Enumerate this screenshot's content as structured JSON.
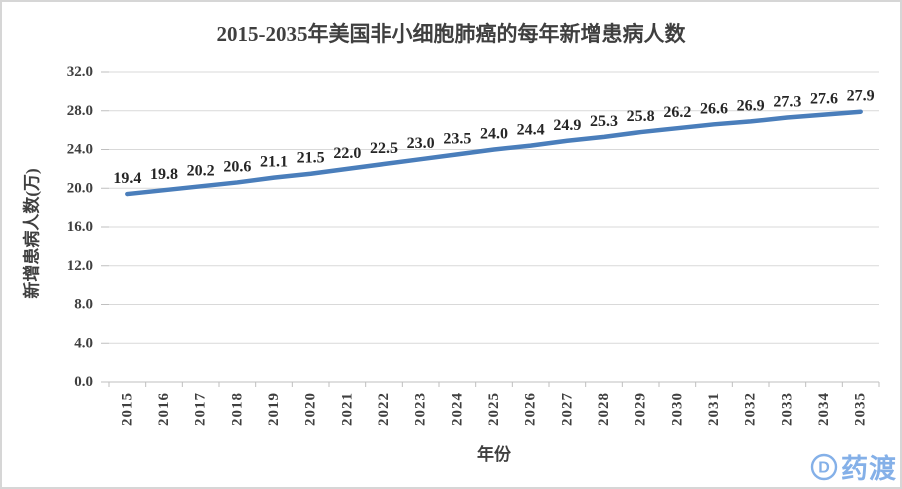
{
  "chart_data": {
    "type": "line",
    "title": "2015-2035年美国非小细胞肺癌的每年新增患病人数",
    "xlabel": "年份",
    "ylabel": "新增患病人数(万)",
    "categories": [
      "2015",
      "2016",
      "2017",
      "2018",
      "2019",
      "2020",
      "2021",
      "2022",
      "2023",
      "2024",
      "2025",
      "2026",
      "2027",
      "2028",
      "2029",
      "2030",
      "2031",
      "2032",
      "2033",
      "2034",
      "2035"
    ],
    "values": [
      19.4,
      19.8,
      20.2,
      20.6,
      21.1,
      21.5,
      22.0,
      22.5,
      23.0,
      23.5,
      24.0,
      24.4,
      24.9,
      25.3,
      25.8,
      26.2,
      26.6,
      26.9,
      27.3,
      27.6,
      27.9
    ],
    "ylim": [
      0,
      32
    ],
    "ytick_step": 4,
    "ytick_labels": [
      "0.0",
      "4.0",
      "8.0",
      "12.0",
      "16.0",
      "20.0",
      "24.0",
      "28.0",
      "32.0"
    ],
    "grid": true,
    "legend": "none",
    "data_labels_shown": true,
    "line_color": "#4a7ebb",
    "gridline_color": "#d9d9d9",
    "axis_line_color": "#bfbfbf",
    "tick_label_color": "#3f3f3f",
    "data_label_color": "#262626",
    "title_color": "#3f3f3f"
  },
  "watermark": {
    "text": "药渡",
    "logo": "pharmacodia-circle-d",
    "logo_letter": "D",
    "color": "#84b0e8"
  }
}
